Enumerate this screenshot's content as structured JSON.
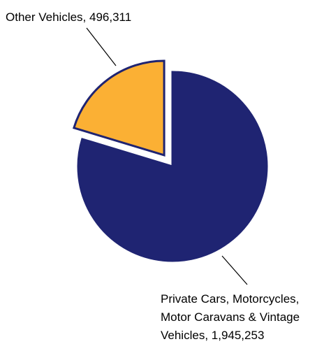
{
  "chart_data": {
    "type": "pie",
    "title": "",
    "slices": [
      {
        "label": "Private Cars, Motorcycles, Motor Caravans & Vintage Vehicles",
        "label_lines": [
          "Private Cars, Motorcycles,",
          "Motor Caravans & Vintage",
          "Vehicles, 1,945,253"
        ],
        "value": 1945253,
        "color": "#1f2472",
        "exploded": false
      },
      {
        "label": "Other Vehicles",
        "label_lines": [
          "Other Vehicles, 496,311"
        ],
        "value": 496311,
        "color": "#fbb034",
        "exploded": true
      }
    ],
    "slice_outline_color": "#1f2472",
    "legend": "none",
    "data_labels": "outside-with-leader-lines"
  }
}
